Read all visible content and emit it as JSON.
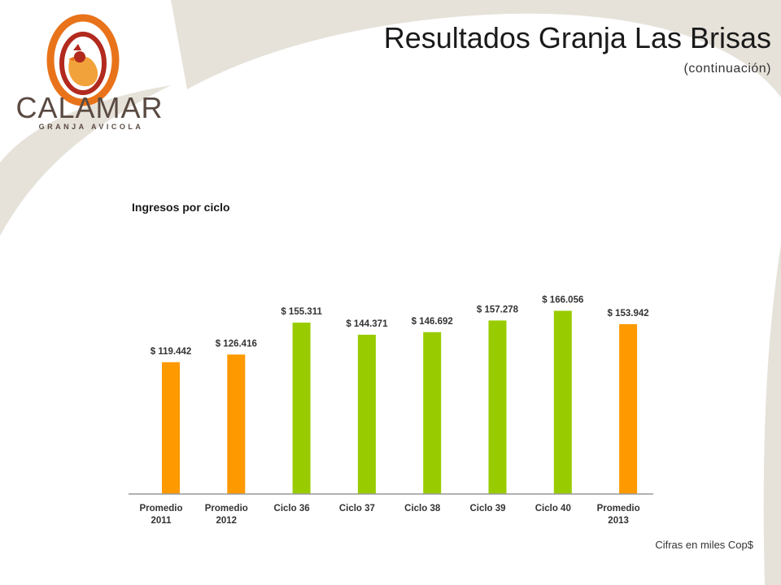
{
  "header": {
    "title": "Resultados Granja Las Brisas",
    "subtitle": "(continuación)"
  },
  "logo": {
    "name": "CALAMAR",
    "tagline": "GRANJA AVICOLA"
  },
  "footer": {
    "note": "Cifras en miles Cop$"
  },
  "colors": {
    "average_bar": "#FF9900",
    "cycle_bar": "#99CC00",
    "background_swoosh": "#E6E2DA",
    "logo_orange": "#E8731A",
    "logo_red": "#B22A1E",
    "logo_text": "#5A4A42"
  },
  "chart_data": {
    "type": "bar",
    "title": "Ingresos por ciclo",
    "categories": [
      [
        "Promedio",
        "2011"
      ],
      [
        "Promedio",
        "2012"
      ],
      [
        "Ciclo 36"
      ],
      [
        "Ciclo 37"
      ],
      [
        "Ciclo 38"
      ],
      [
        "Ciclo 39"
      ],
      [
        "Ciclo 40"
      ],
      [
        "Promedio",
        "2013"
      ]
    ],
    "values": [
      119442,
      126416,
      155311,
      144371,
      146692,
      157278,
      166056,
      153942
    ],
    "labels": [
      "$ 119.442",
      "$ 126.416",
      "$ 155.311",
      "$ 144.371",
      "$ 146.692",
      "$ 157.278",
      "$ 166.056",
      "$ 153.942"
    ],
    "bar_kind": [
      "average",
      "average",
      "cycle",
      "cycle",
      "cycle",
      "cycle",
      "cycle",
      "average"
    ],
    "ylim": [
      0,
      190000
    ],
    "grid": false,
    "legend": "none"
  }
}
